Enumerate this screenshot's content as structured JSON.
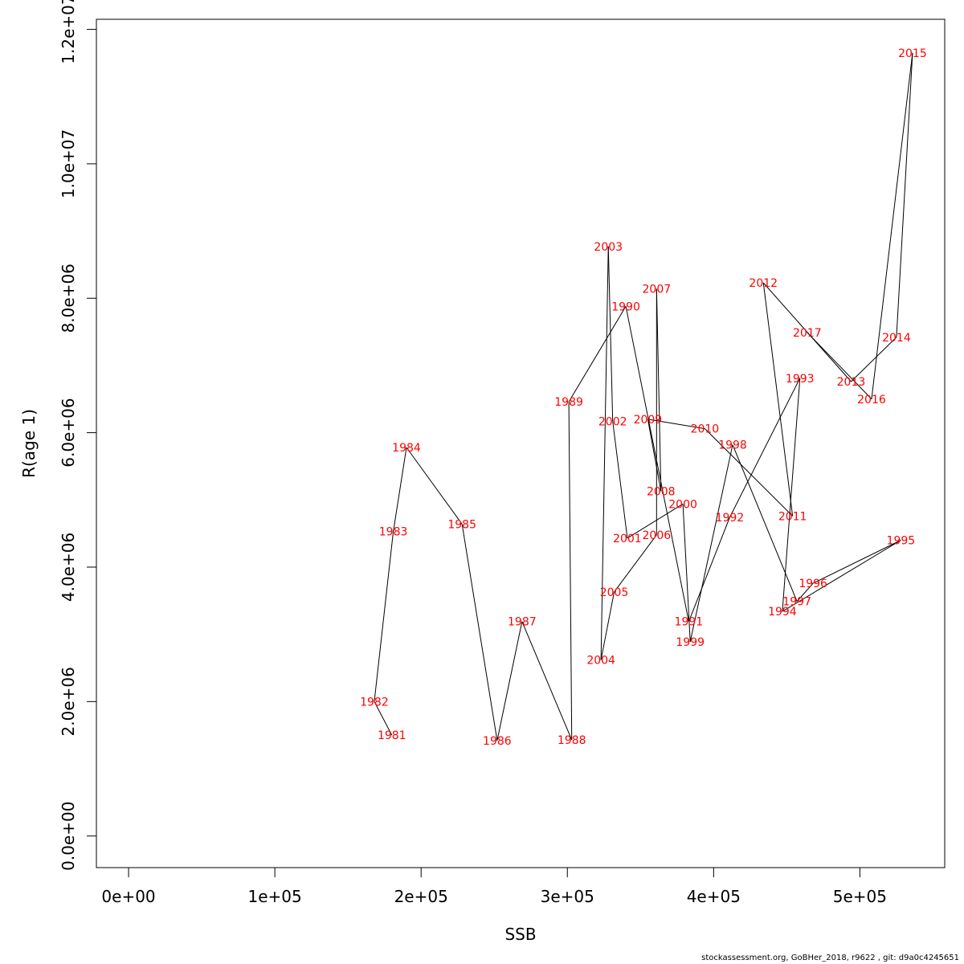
{
  "chart_data": {
    "type": "line",
    "xlabel": "SSB",
    "ylabel": "R(age 1)",
    "xlim": [
      -22000,
      558000
    ],
    "ylim": [
      -470000,
      12150000
    ],
    "x_ticks": [
      0,
      100000,
      200000,
      300000,
      400000,
      500000
    ],
    "x_tick_labels": [
      "0e+00",
      "1e+05",
      "2e+05",
      "3e+05",
      "4e+05",
      "5e+05"
    ],
    "y_ticks": [
      0,
      2000000,
      4000000,
      6000000,
      8000000,
      10000000,
      12000000
    ],
    "y_tick_labels": [
      "0.0e+00",
      "2.0e+06",
      "4.0e+06",
      "6.0e+06",
      "8.0e+06",
      "1.0e+07",
      "1.2e+07"
    ],
    "grid": false,
    "legend": "none",
    "line_color": "#000000",
    "label_color": "#ff0000",
    "points": [
      {
        "year": "1981",
        "x": 180000,
        "y": 1500000
      },
      {
        "year": "1982",
        "x": 168000,
        "y": 2000000
      },
      {
        "year": "1983",
        "x": 181000,
        "y": 4530000
      },
      {
        "year": "1984",
        "x": 190000,
        "y": 5780000
      },
      {
        "year": "1985",
        "x": 228000,
        "y": 4640000
      },
      {
        "year": "1986",
        "x": 252000,
        "y": 1420000
      },
      {
        "year": "1987",
        "x": 269000,
        "y": 3190000
      },
      {
        "year": "1988",
        "x": 303000,
        "y": 1430000
      },
      {
        "year": "1989",
        "x": 301000,
        "y": 6460000
      },
      {
        "year": "1990",
        "x": 340000,
        "y": 7880000
      },
      {
        "year": "1991",
        "x": 383000,
        "y": 3190000
      },
      {
        "year": "1992",
        "x": 411000,
        "y": 4740000
      },
      {
        "year": "1993",
        "x": 459000,
        "y": 6810000
      },
      {
        "year": "1994",
        "x": 447000,
        "y": 3340000
      },
      {
        "year": "1995",
        "x": 528000,
        "y": 4400000
      },
      {
        "year": "1996",
        "x": 468000,
        "y": 3760000
      },
      {
        "year": "1997",
        "x": 457000,
        "y": 3490000
      },
      {
        "year": "1998",
        "x": 413000,
        "y": 5820000
      },
      {
        "year": "1999",
        "x": 384000,
        "y": 2890000
      },
      {
        "year": "2000",
        "x": 379000,
        "y": 4940000
      },
      {
        "year": "2001",
        "x": 341000,
        "y": 4430000
      },
      {
        "year": "2002",
        "x": 331000,
        "y": 6170000
      },
      {
        "year": "2003",
        "x": 328000,
        "y": 8770000
      },
      {
        "year": "2004",
        "x": 323000,
        "y": 2620000
      },
      {
        "year": "2005",
        "x": 332000,
        "y": 3630000
      },
      {
        "year": "2006",
        "x": 361000,
        "y": 4480000
      },
      {
        "year": "2007",
        "x": 361000,
        "y": 8140000
      },
      {
        "year": "2008",
        "x": 364000,
        "y": 5130000
      },
      {
        "year": "2009",
        "x": 355000,
        "y": 6200000
      },
      {
        "year": "2010",
        "x": 394000,
        "y": 6060000
      },
      {
        "year": "2011",
        "x": 454000,
        "y": 4760000
      },
      {
        "year": "2012",
        "x": 434000,
        "y": 8230000
      },
      {
        "year": "2013",
        "x": 494000,
        "y": 6760000
      },
      {
        "year": "2014",
        "x": 525000,
        "y": 7420000
      },
      {
        "year": "2015",
        "x": 536000,
        "y": 11650000
      },
      {
        "year": "2016",
        "x": 508000,
        "y": 6500000
      },
      {
        "year": "2017",
        "x": 464000,
        "y": 7490000
      }
    ]
  },
  "footer": {
    "credit": "stockassessment.org, GoBHer_2018, r9622 , git: d9a0c4245651"
  }
}
